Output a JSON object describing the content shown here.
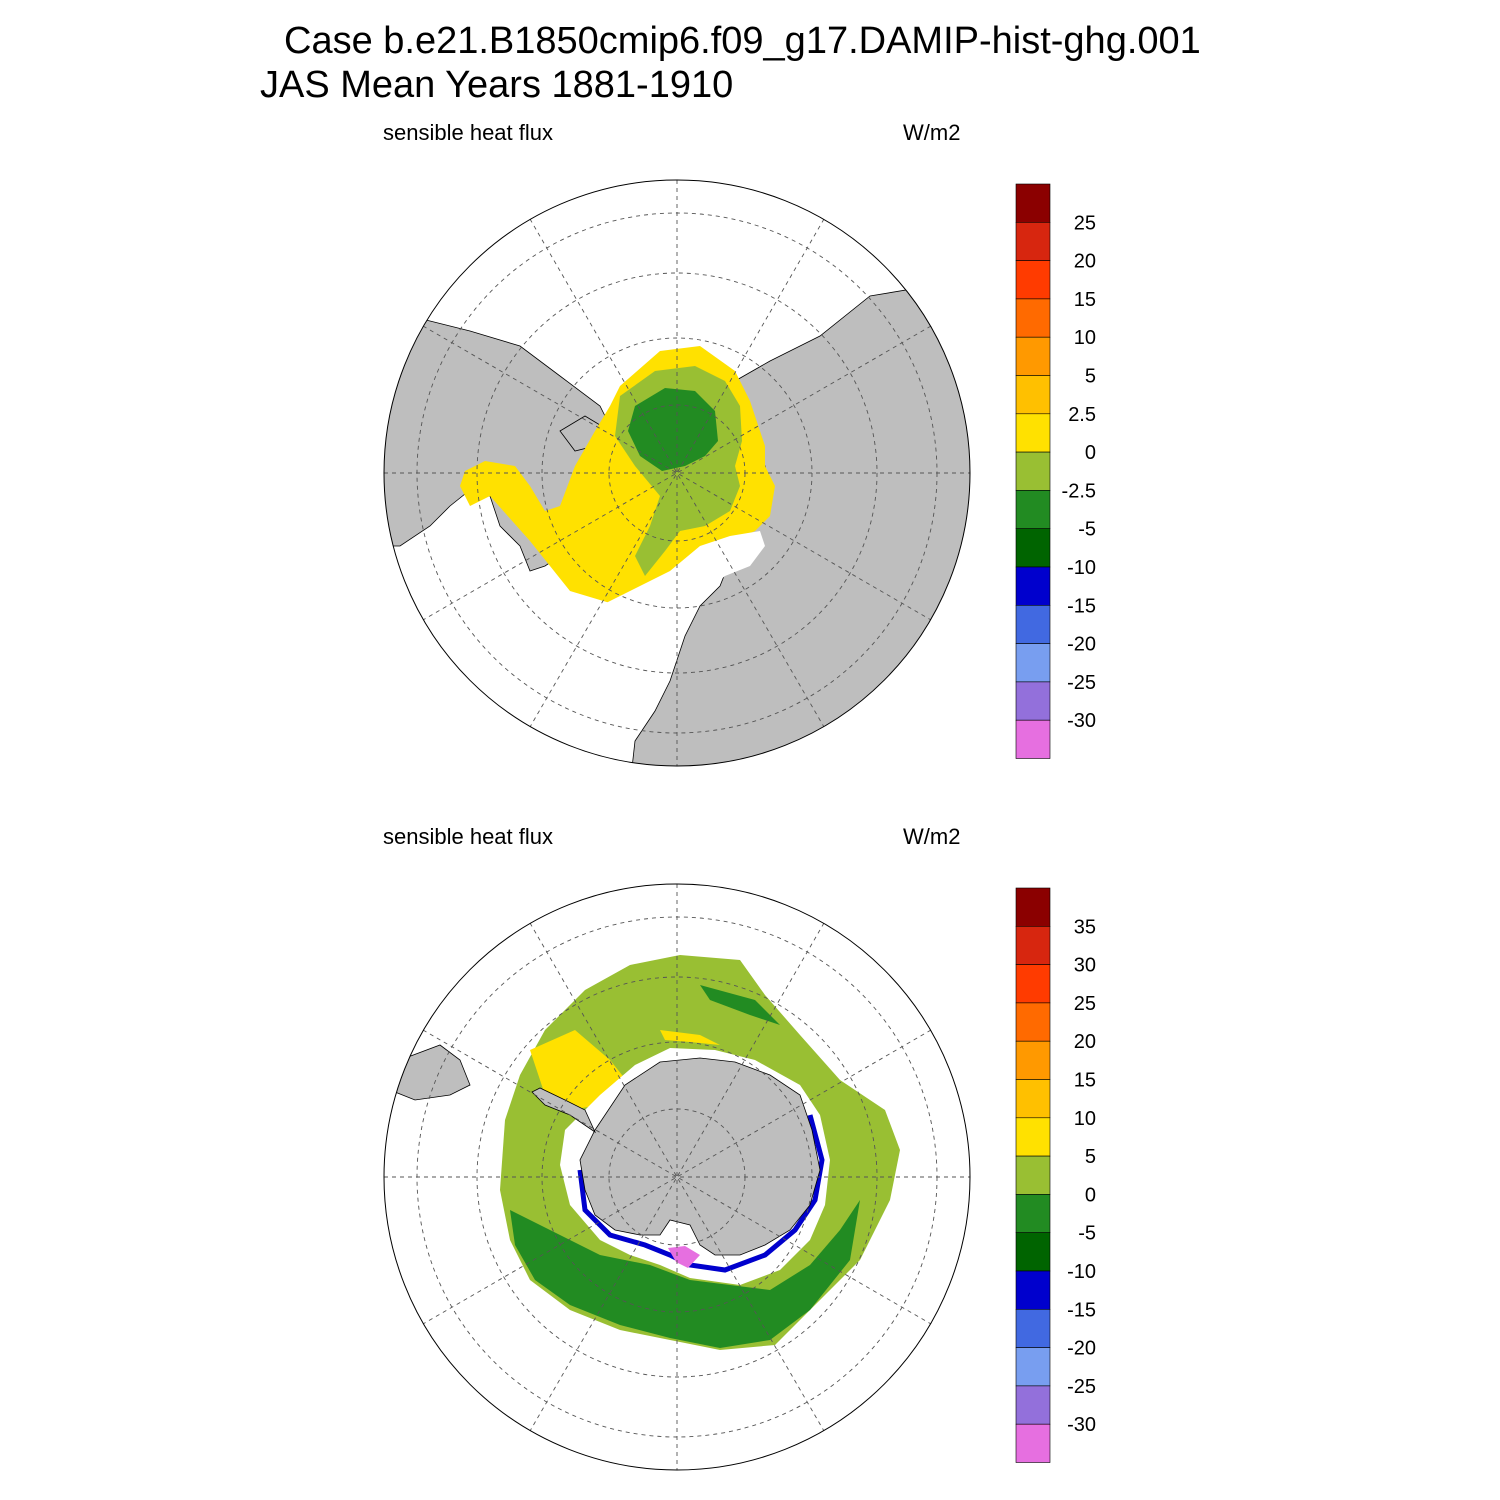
{
  "title": {
    "line1": "Case b.e21.B1850cmip6.f09_g17.DAMIP-hist-ghg.001",
    "line2": "JAS Mean   Years 1881-1910"
  },
  "panels": [
    {
      "id": "north",
      "hemisphere": "Arctic (north polar stereographic)",
      "left_label": "sensible heat flux",
      "right_label": "W/m2",
      "colorbar": {
        "colors": [
          "#8b0000",
          "#d7260f",
          "#ff3b00",
          "#ff6a00",
          "#ff9900",
          "#ffc000",
          "#ffe100",
          "#99bf33",
          "#228b22",
          "#006400",
          "#0000cd",
          "#4169e1",
          "#789ef0",
          "#9370db",
          "#e66fe0"
        ],
        "labels": [
          "25",
          "20",
          "15",
          "10",
          "5",
          "2.5",
          "0",
          "-2.5",
          "-5",
          "-10",
          "-15",
          "-20",
          "-25",
          "-30"
        ]
      }
    },
    {
      "id": "south",
      "hemisphere": "Antarctic (south polar stereographic)",
      "left_label": "sensible heat flux",
      "right_label": "W/m2",
      "colorbar": {
        "colors": [
          "#8b0000",
          "#d7260f",
          "#ff3b00",
          "#ff6a00",
          "#ff9900",
          "#ffc000",
          "#ffe100",
          "#99bf33",
          "#228b22",
          "#006400",
          "#0000cd",
          "#4169e1",
          "#789ef0",
          "#9370db",
          "#e66fe0"
        ],
        "labels": [
          "35",
          "30",
          "25",
          "20",
          "15",
          "10",
          "5",
          "0",
          "-5",
          "-10",
          "-15",
          "-20",
          "-25",
          "-30"
        ]
      }
    }
  ],
  "map_colors": {
    "land": "#bebebe",
    "missing": "#ffffff"
  }
}
